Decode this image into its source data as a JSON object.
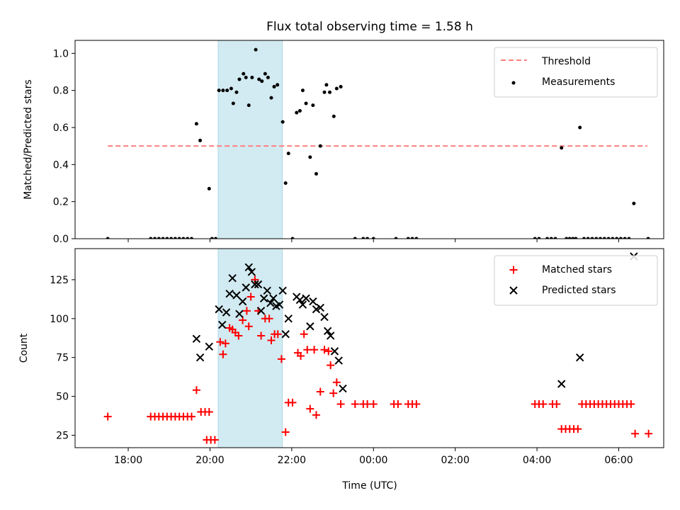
{
  "figure": {
    "title": "Flux total observing time = 1.58 h"
  },
  "chart_data": [
    {
      "type": "scatter",
      "panel": "top",
      "xlabel": "",
      "ylabel": "Matched/Predicted stars",
      "xlim": [
        16.7,
        31.1
      ],
      "ylim": [
        0.0,
        1.07
      ],
      "yticks": [
        0.0,
        0.2,
        0.4,
        0.6,
        0.8,
        1.0
      ],
      "ytick_labels": [
        "0.0",
        "0.2",
        "0.4",
        "0.6",
        "0.8",
        "1.0"
      ],
      "legend_position": "upper right",
      "shaded_span": {
        "x0": 20.2,
        "x1": 21.77,
        "color": "#add8e6"
      },
      "series": [
        {
          "name": "Threshold",
          "style": "dashed-line",
          "color": "#ff7f7f",
          "x": [
            17.5,
            30.7
          ],
          "y": [
            0.5,
            0.5
          ]
        },
        {
          "name": "Measurements",
          "style": "dots",
          "color": "#000000",
          "points": [
            [
              17.5,
              0.0
            ],
            [
              18.55,
              0.0
            ],
            [
              18.65,
              0.0
            ],
            [
              18.75,
              0.0
            ],
            [
              18.85,
              0.0
            ],
            [
              18.95,
              0.0
            ],
            [
              19.05,
              0.0
            ],
            [
              19.15,
              0.0
            ],
            [
              19.25,
              0.0
            ],
            [
              19.35,
              0.0
            ],
            [
              19.45,
              0.0
            ],
            [
              19.55,
              0.0
            ],
            [
              19.67,
              0.62
            ],
            [
              19.76,
              0.53
            ],
            [
              19.98,
              0.27
            ],
            [
              20.05,
              0.0
            ],
            [
              20.14,
              0.0
            ],
            [
              20.22,
              0.8
            ],
            [
              20.32,
              0.8
            ],
            [
              20.42,
              0.8
            ],
            [
              20.52,
              0.81
            ],
            [
              20.57,
              0.73
            ],
            [
              20.65,
              0.79
            ],
            [
              20.72,
              0.86
            ],
            [
              20.82,
              0.89
            ],
            [
              20.88,
              0.87
            ],
            [
              20.95,
              0.72
            ],
            [
              21.03,
              0.87
            ],
            [
              21.12,
              1.02
            ],
            [
              21.2,
              0.86
            ],
            [
              21.27,
              0.85
            ],
            [
              21.35,
              0.89
            ],
            [
              21.42,
              0.87
            ],
            [
              21.5,
              0.76
            ],
            [
              21.57,
              0.82
            ],
            [
              21.65,
              0.83
            ],
            [
              21.78,
              0.63
            ],
            [
              21.85,
              0.3
            ],
            [
              21.92,
              0.46
            ],
            [
              22.02,
              0.0
            ],
            [
              22.12,
              0.68
            ],
            [
              22.2,
              0.69
            ],
            [
              22.27,
              0.8
            ],
            [
              22.35,
              0.73
            ],
            [
              22.45,
              0.44
            ],
            [
              22.52,
              0.72
            ],
            [
              22.6,
              0.35
            ],
            [
              22.7,
              0.5
            ],
            [
              22.8,
              0.79
            ],
            [
              22.85,
              0.83
            ],
            [
              22.93,
              0.79
            ],
            [
              23.03,
              0.66
            ],
            [
              23.1,
              0.81
            ],
            [
              23.2,
              0.82
            ],
            [
              23.55,
              0.0
            ],
            [
              23.75,
              0.0
            ],
            [
              23.85,
              0.0
            ],
            [
              24.0,
              0.0
            ],
            [
              24.55,
              0.0
            ],
            [
              24.85,
              0.0
            ],
            [
              24.95,
              0.0
            ],
            [
              25.05,
              0.0
            ],
            [
              27.95,
              0.0
            ],
            [
              28.05,
              0.0
            ],
            [
              28.25,
              0.0
            ],
            [
              28.35,
              0.0
            ],
            [
              28.45,
              0.0
            ],
            [
              28.6,
              0.49
            ],
            [
              28.72,
              0.0
            ],
            [
              28.8,
              0.0
            ],
            [
              28.88,
              0.0
            ],
            [
              28.95,
              0.0
            ],
            [
              29.05,
              0.6
            ],
            [
              29.15,
              0.0
            ],
            [
              29.25,
              0.0
            ],
            [
              29.35,
              0.0
            ],
            [
              29.45,
              0.0
            ],
            [
              29.55,
              0.0
            ],
            [
              29.65,
              0.0
            ],
            [
              29.75,
              0.0
            ],
            [
              29.85,
              0.0
            ],
            [
              29.95,
              0.0
            ],
            [
              30.05,
              0.0
            ],
            [
              30.15,
              0.0
            ],
            [
              30.25,
              0.0
            ],
            [
              30.37,
              0.19
            ],
            [
              30.72,
              0.0
            ]
          ]
        }
      ]
    },
    {
      "type": "scatter",
      "panel": "bottom",
      "xlabel": "Time (UTC)",
      "ylabel": "Count",
      "xlim": [
        16.7,
        31.1
      ],
      "ylim": [
        17,
        145
      ],
      "xticks": [
        18,
        20,
        22,
        24,
        26,
        28,
        30
      ],
      "xtick_labels": [
        "18:00",
        "20:00",
        "22:00",
        "00:00",
        "02:00",
        "04:00",
        "06:00"
      ],
      "yticks": [
        25,
        50,
        75,
        100,
        125
      ],
      "ytick_labels": [
        "25",
        "50",
        "75",
        "100",
        "125"
      ],
      "legend_position": "upper right",
      "shaded_span": {
        "x0": 20.2,
        "x1": 21.77,
        "color": "#add8e6"
      },
      "series": [
        {
          "name": "Matched stars",
          "marker": "plus",
          "color": "#ff0000",
          "points": [
            [
              17.5,
              37
            ],
            [
              18.55,
              37
            ],
            [
              18.65,
              37
            ],
            [
              18.75,
              37
            ],
            [
              18.85,
              37
            ],
            [
              18.95,
              37
            ],
            [
              19.05,
              37
            ],
            [
              19.15,
              37
            ],
            [
              19.25,
              37
            ],
            [
              19.35,
              37
            ],
            [
              19.45,
              37
            ],
            [
              19.55,
              37
            ],
            [
              19.67,
              54
            ],
            [
              19.78,
              40
            ],
            [
              19.88,
              40
            ],
            [
              19.98,
              40
            ],
            [
              19.92,
              22
            ],
            [
              20.02,
              22
            ],
            [
              20.12,
              22
            ],
            [
              20.25,
              85
            ],
            [
              20.32,
              77
            ],
            [
              20.38,
              84
            ],
            [
              20.48,
              94
            ],
            [
              20.55,
              93
            ],
            [
              20.62,
              91
            ],
            [
              20.7,
              89
            ],
            [
              20.8,
              99
            ],
            [
              20.9,
              105
            ],
            [
              20.95,
              95
            ],
            [
              21.0,
              114
            ],
            [
              21.1,
              125
            ],
            [
              21.18,
              105
            ],
            [
              21.25,
              89
            ],
            [
              21.35,
              100
            ],
            [
              21.45,
              100
            ],
            [
              21.5,
              86
            ],
            [
              21.58,
              90
            ],
            [
              21.66,
              90
            ],
            [
              21.75,
              74
            ],
            [
              21.85,
              27
            ],
            [
              21.92,
              46
            ],
            [
              22.02,
              46
            ],
            [
              22.15,
              78
            ],
            [
              22.22,
              76
            ],
            [
              22.3,
              90
            ],
            [
              22.38,
              80
            ],
            [
              22.45,
              42
            ],
            [
              22.55,
              80
            ],
            [
              22.6,
              38
            ],
            [
              22.7,
              53
            ],
            [
              22.8,
              80
            ],
            [
              22.9,
              79
            ],
            [
              22.95,
              70
            ],
            [
              23.02,
              52
            ],
            [
              23.1,
              59
            ],
            [
              23.2,
              45
            ],
            [
              23.55,
              45
            ],
            [
              23.75,
              45
            ],
            [
              23.85,
              45
            ],
            [
              24.0,
              45
            ],
            [
              24.5,
              45
            ],
            [
              24.6,
              45
            ],
            [
              24.85,
              45
            ],
            [
              24.95,
              45
            ],
            [
              25.05,
              45
            ],
            [
              27.95,
              45
            ],
            [
              28.05,
              45
            ],
            [
              28.15,
              45
            ],
            [
              28.38,
              45
            ],
            [
              28.48,
              45
            ],
            [
              28.6,
              29
            ],
            [
              28.7,
              29
            ],
            [
              28.8,
              29
            ],
            [
              28.9,
              29
            ],
            [
              29.0,
              29
            ],
            [
              29.1,
              45
            ],
            [
              29.2,
              45
            ],
            [
              29.3,
              45
            ],
            [
              29.4,
              45
            ],
            [
              29.5,
              45
            ],
            [
              29.6,
              45
            ],
            [
              29.7,
              45
            ],
            [
              29.8,
              45
            ],
            [
              29.9,
              45
            ],
            [
              30.0,
              45
            ],
            [
              30.1,
              45
            ],
            [
              30.2,
              45
            ],
            [
              30.3,
              45
            ],
            [
              30.4,
              26
            ],
            [
              30.73,
              26
            ]
          ]
        },
        {
          "name": "Predicted stars",
          "marker": "x",
          "color": "#000000",
          "points": [
            [
              19.67,
              87
            ],
            [
              19.76,
              75
            ],
            [
              19.98,
              82
            ],
            [
              20.22,
              106
            ],
            [
              20.3,
              96
            ],
            [
              20.4,
              104
            ],
            [
              20.48,
              116
            ],
            [
              20.55,
              126
            ],
            [
              20.65,
              115
            ],
            [
              20.72,
              103
            ],
            [
              20.8,
              111
            ],
            [
              20.88,
              120
            ],
            [
              20.95,
              133
            ],
            [
              21.02,
              130
            ],
            [
              21.1,
              122
            ],
            [
              21.18,
              122
            ],
            [
              21.25,
              105
            ],
            [
              21.32,
              113
            ],
            [
              21.4,
              118
            ],
            [
              21.48,
              110
            ],
            [
              21.55,
              113
            ],
            [
              21.62,
              108
            ],
            [
              21.7,
              109
            ],
            [
              21.78,
              118
            ],
            [
              21.85,
              90
            ],
            [
              21.92,
              100
            ],
            [
              22.12,
              114
            ],
            [
              22.2,
              112
            ],
            [
              22.27,
              109
            ],
            [
              22.35,
              113
            ],
            [
              22.45,
              95
            ],
            [
              22.52,
              111
            ],
            [
              22.6,
              106
            ],
            [
              22.7,
              107
            ],
            [
              22.8,
              101
            ],
            [
              22.88,
              92
            ],
            [
              22.95,
              89
            ],
            [
              23.05,
              79
            ],
            [
              23.15,
              73
            ],
            [
              23.25,
              55
            ],
            [
              28.6,
              58
            ],
            [
              29.05,
              75
            ],
            [
              30.37,
              140
            ]
          ]
        }
      ]
    }
  ]
}
